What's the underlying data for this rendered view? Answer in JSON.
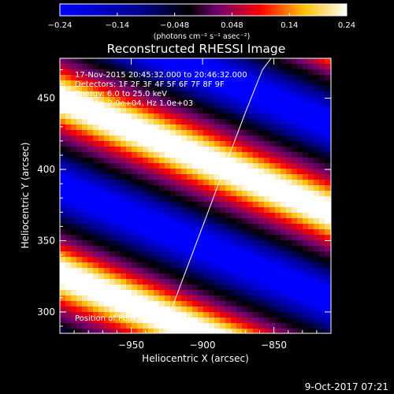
{
  "chart_data": {
    "type": "heatmap",
    "title": "Reconstructed RHESSI Image",
    "xlabel": "Heliocentric X (arcsec)",
    "ylabel": "Heliocentric Y (arcsec)",
    "xlim": [
      -1000,
      -810
    ],
    "ylim": [
      285,
      478
    ],
    "x_ticks": [
      -950,
      -900,
      -850
    ],
    "x_tick_labels": [
      "−950",
      "−900",
      "−850"
    ],
    "y_ticks": [
      300,
      350,
      400,
      450
    ],
    "y_tick_labels": [
      "300",
      "350",
      "400",
      "450"
    ],
    "colorbar": {
      "range": [
        -0.24,
        0.24
      ],
      "tick_labels": [
        "−0.24",
        "−0.14",
        "−0.048",
        "0.048",
        "0.14",
        "0.24"
      ],
      "unit_label": "(photons cm⁻² s⁻¹ asec⁻²)",
      "colormap": [
        "#0000ff",
        "#000080",
        "#000000",
        "#800080",
        "#ff0000",
        "#ffff00",
        "#ffffff"
      ]
    },
    "annotations": {
      "date": "17-Nov-2015 20:45:32.000 to 20:46:32.000",
      "detectors": "Detectors: 1F 2F 3F 4F 5F 6F 7F 8F 9F",
      "energy": "Energy: 6.0 to 25.0 keV",
      "counts": "Counts: 2.0e+04, Hz 1.0e+03",
      "peak": "Position of Peak = [-970,438]"
    },
    "limb_curve": [
      [
        -928,
        285
      ],
      [
        -915,
        320
      ],
      [
        -900,
        360
      ],
      [
        -885,
        400
      ],
      [
        -870,
        440
      ],
      [
        -858,
        470
      ],
      [
        -852,
        478
      ]
    ]
  },
  "footer": {
    "timestamp": "9-Oct-2017 07:21"
  }
}
